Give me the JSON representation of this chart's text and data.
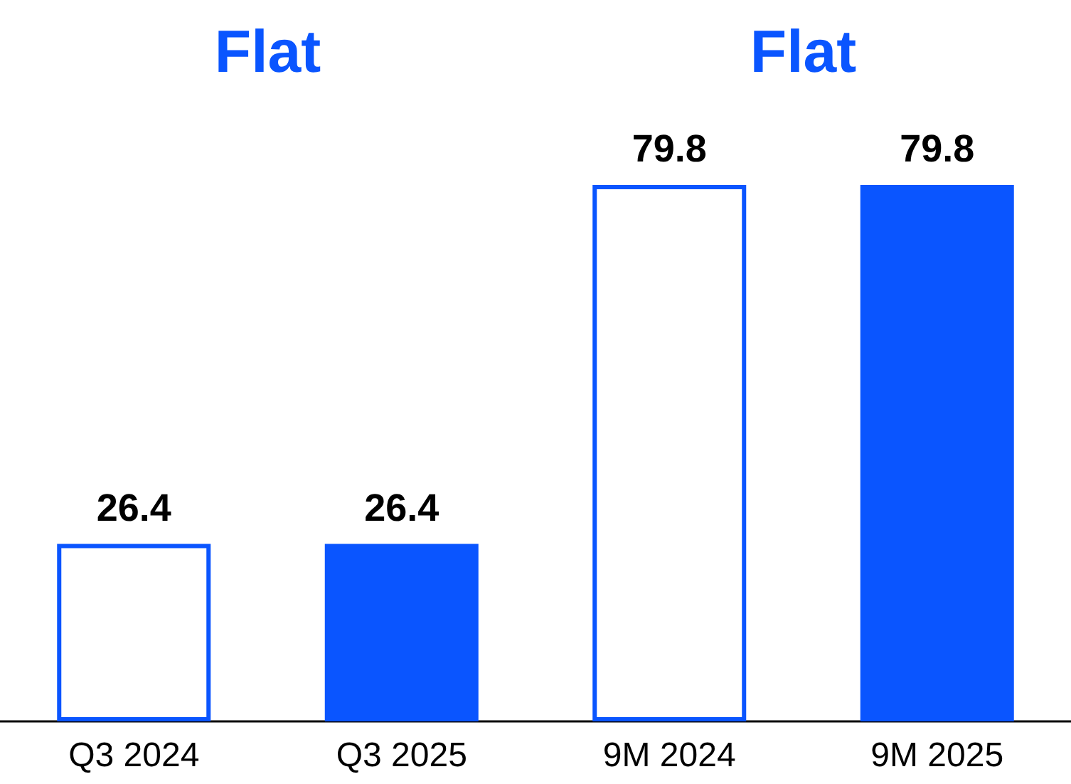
{
  "chart_data": {
    "type": "bar",
    "categories": [
      "Q3 2024",
      "Q3 2025",
      "9M 2024",
      "9M 2025"
    ],
    "values": [
      26.4,
      26.4,
      79.8,
      79.8
    ],
    "color": "#0a55ff",
    "colors": [
      "#ffffff",
      "#0a55ff",
      "#ffffff",
      "#0a55ff"
    ],
    "data_labels": true,
    "annotations": [
      "Flat",
      "Flat"
    ]
  }
}
